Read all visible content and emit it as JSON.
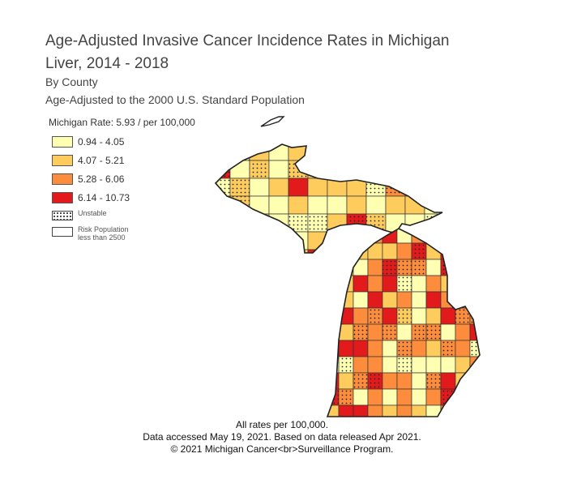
{
  "title": {
    "line1_prefix": "Age-Adjusted",
    "line1_rest": " Invasive Cancer Incidence Rates in Michigan",
    "line2": "Liver, 2014 - 2018",
    "line3": "By County",
    "line4": "Age-Adjusted to the 2000 U.S. Standard Population"
  },
  "state_rate": "Michigan Rate: 5.93 / per 100,000",
  "legend": {
    "classes": [
      {
        "label": "0.94 - 4.05",
        "color": "#ffffb2"
      },
      {
        "label": "4.07 - 5.21",
        "color": "#fecc5c"
      },
      {
        "label": "5.28 - 6.06",
        "color": "#fd8d3c"
      },
      {
        "label": "6.14 - 10.73",
        "color": "#e31a1c"
      }
    ],
    "unstable_label": "Unstable",
    "risk_label_line1": "Risk Population",
    "risk_label_line2": "less than 2500"
  },
  "footer": {
    "line1": "All rates per 100,000.",
    "line2": "Data accessed May 19, 2021. Based on data released Apr 2021.",
    "line3": "© 2021 Michigan Cancer<br>Surveillance Program."
  }
}
